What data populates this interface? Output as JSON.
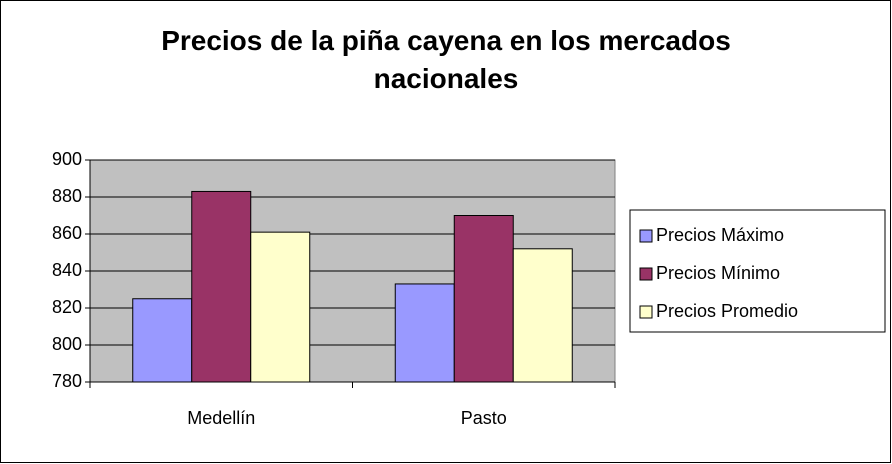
{
  "chart_data": {
    "type": "bar",
    "title": "Precios de la piña cayena en los mercados nacionales",
    "categories": [
      "Medellín",
      "Pasto"
    ],
    "series": [
      {
        "name": "Precios Máximo",
        "color": "#9999ff",
        "values": [
          825,
          833
        ]
      },
      {
        "name": "Precios Mínimo",
        "color": "#993366",
        "values": [
          883,
          870
        ]
      },
      {
        "name": "Precios Promedio",
        "color": "#ffffcc",
        "values": [
          861,
          852
        ]
      }
    ],
    "ylim": [
      780,
      900
    ],
    "yticks": [
      780,
      800,
      820,
      840,
      860,
      880,
      900
    ],
    "grid": true,
    "legend": "right"
  }
}
